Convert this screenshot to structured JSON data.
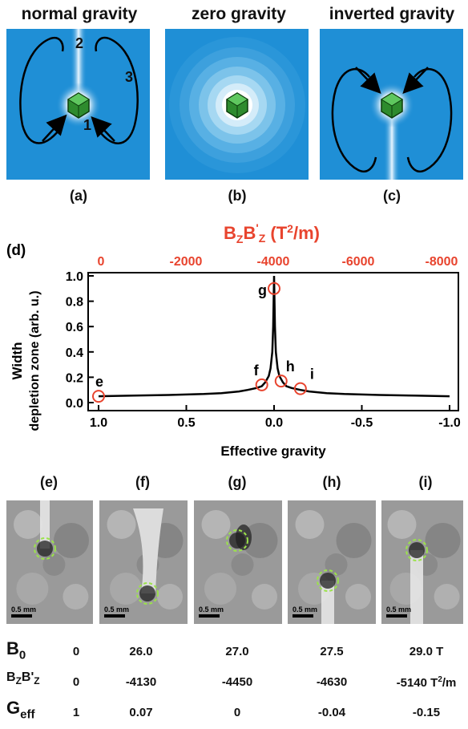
{
  "top_panels": [
    {
      "title": "normal gravity",
      "label": "(a)"
    },
    {
      "title": "zero gravity",
      "label": "(b)"
    },
    {
      "title": "inverted gravity",
      "label": "(c)"
    }
  ],
  "panel_a_numbers": [
    "2",
    "3",
    "1"
  ],
  "colors": {
    "panel_blue": "#1f8fd6",
    "marker_red": "#e8442e",
    "axis_top_red": "#e8442e",
    "curve": "#000000",
    "dashed_green": "#9be34a"
  },
  "chart_data": {
    "type": "line",
    "panel_label": "(d)",
    "top_axis_label": "B_Z B'_Z (T^2/m)",
    "top_ticks": [
      "0",
      "-2000",
      "-4000",
      "-6000",
      "-8000"
    ],
    "xlabel": "Effective gravity",
    "ylabel_line1": "Width",
    "ylabel_line2": "depletion zone (arb. u.)",
    "x_ticks": [
      "1.0",
      "0.5",
      "0.0",
      "-0.5",
      "-1.0"
    ],
    "y_ticks": [
      "0.0",
      "0.2",
      "0.4",
      "0.6",
      "0.8",
      "1.0"
    ],
    "xlim": [
      1.0,
      -1.0
    ],
    "ylim": [
      0.0,
      1.0
    ],
    "curve": {
      "x": [
        1.0,
        0.8,
        0.6,
        0.4,
        0.3,
        0.2,
        0.15,
        0.1,
        0.07,
        0.05,
        0.03,
        0.02,
        0.01,
        0.005,
        0.0,
        -0.005,
        -0.01,
        -0.02,
        -0.03,
        -0.05,
        -0.07,
        -0.1,
        -0.15,
        -0.2,
        -0.3,
        -0.4,
        -0.6,
        -0.8,
        -1.0
      ],
      "y": [
        0.05,
        0.055,
        0.06,
        0.068,
        0.075,
        0.088,
        0.1,
        0.115,
        0.13,
        0.16,
        0.21,
        0.27,
        0.4,
        0.6,
        1.0,
        0.6,
        0.4,
        0.27,
        0.21,
        0.16,
        0.13,
        0.115,
        0.1,
        0.088,
        0.075,
        0.068,
        0.06,
        0.055,
        0.05
      ]
    },
    "points": [
      {
        "label": "e",
        "x": 1.0,
        "y": 0.05
      },
      {
        "label": "f",
        "x": 0.07,
        "y": 0.14
      },
      {
        "label": "g",
        "x": 0.0,
        "y": 0.9
      },
      {
        "label": "h",
        "x": -0.04,
        "y": 0.17
      },
      {
        "label": "i",
        "x": -0.15,
        "y": 0.11
      }
    ]
  },
  "images": [
    {
      "label": "(e)",
      "scale": "0.5 mm"
    },
    {
      "label": "(f)",
      "scale": "0.5 mm"
    },
    {
      "label": "(g)",
      "scale": "0.5 mm"
    },
    {
      "label": "(h)",
      "scale": "0.5 mm"
    },
    {
      "label": "(i)",
      "scale": "0.5 mm"
    }
  ],
  "table": {
    "rows": [
      {
        "label_main": "B",
        "label_sub": "0",
        "label_rest": "",
        "values": [
          "0",
          "26.0",
          "27.0",
          "27.5",
          "29.0 T"
        ]
      },
      {
        "label_main": "B",
        "label_sub": "Z",
        "label_rest": "B'",
        "label_sub2": "Z",
        "values": [
          "0",
          "-4130",
          "-4450",
          "-4630",
          "-5140 T"
        ],
        "last_unit": "/m",
        "last_sup": "2"
      },
      {
        "label_main": "G",
        "label_sub": "eff",
        "label_rest": "",
        "values": [
          "1",
          "0.07",
          "0",
          "-0.04",
          "-0.15"
        ]
      }
    ]
  }
}
